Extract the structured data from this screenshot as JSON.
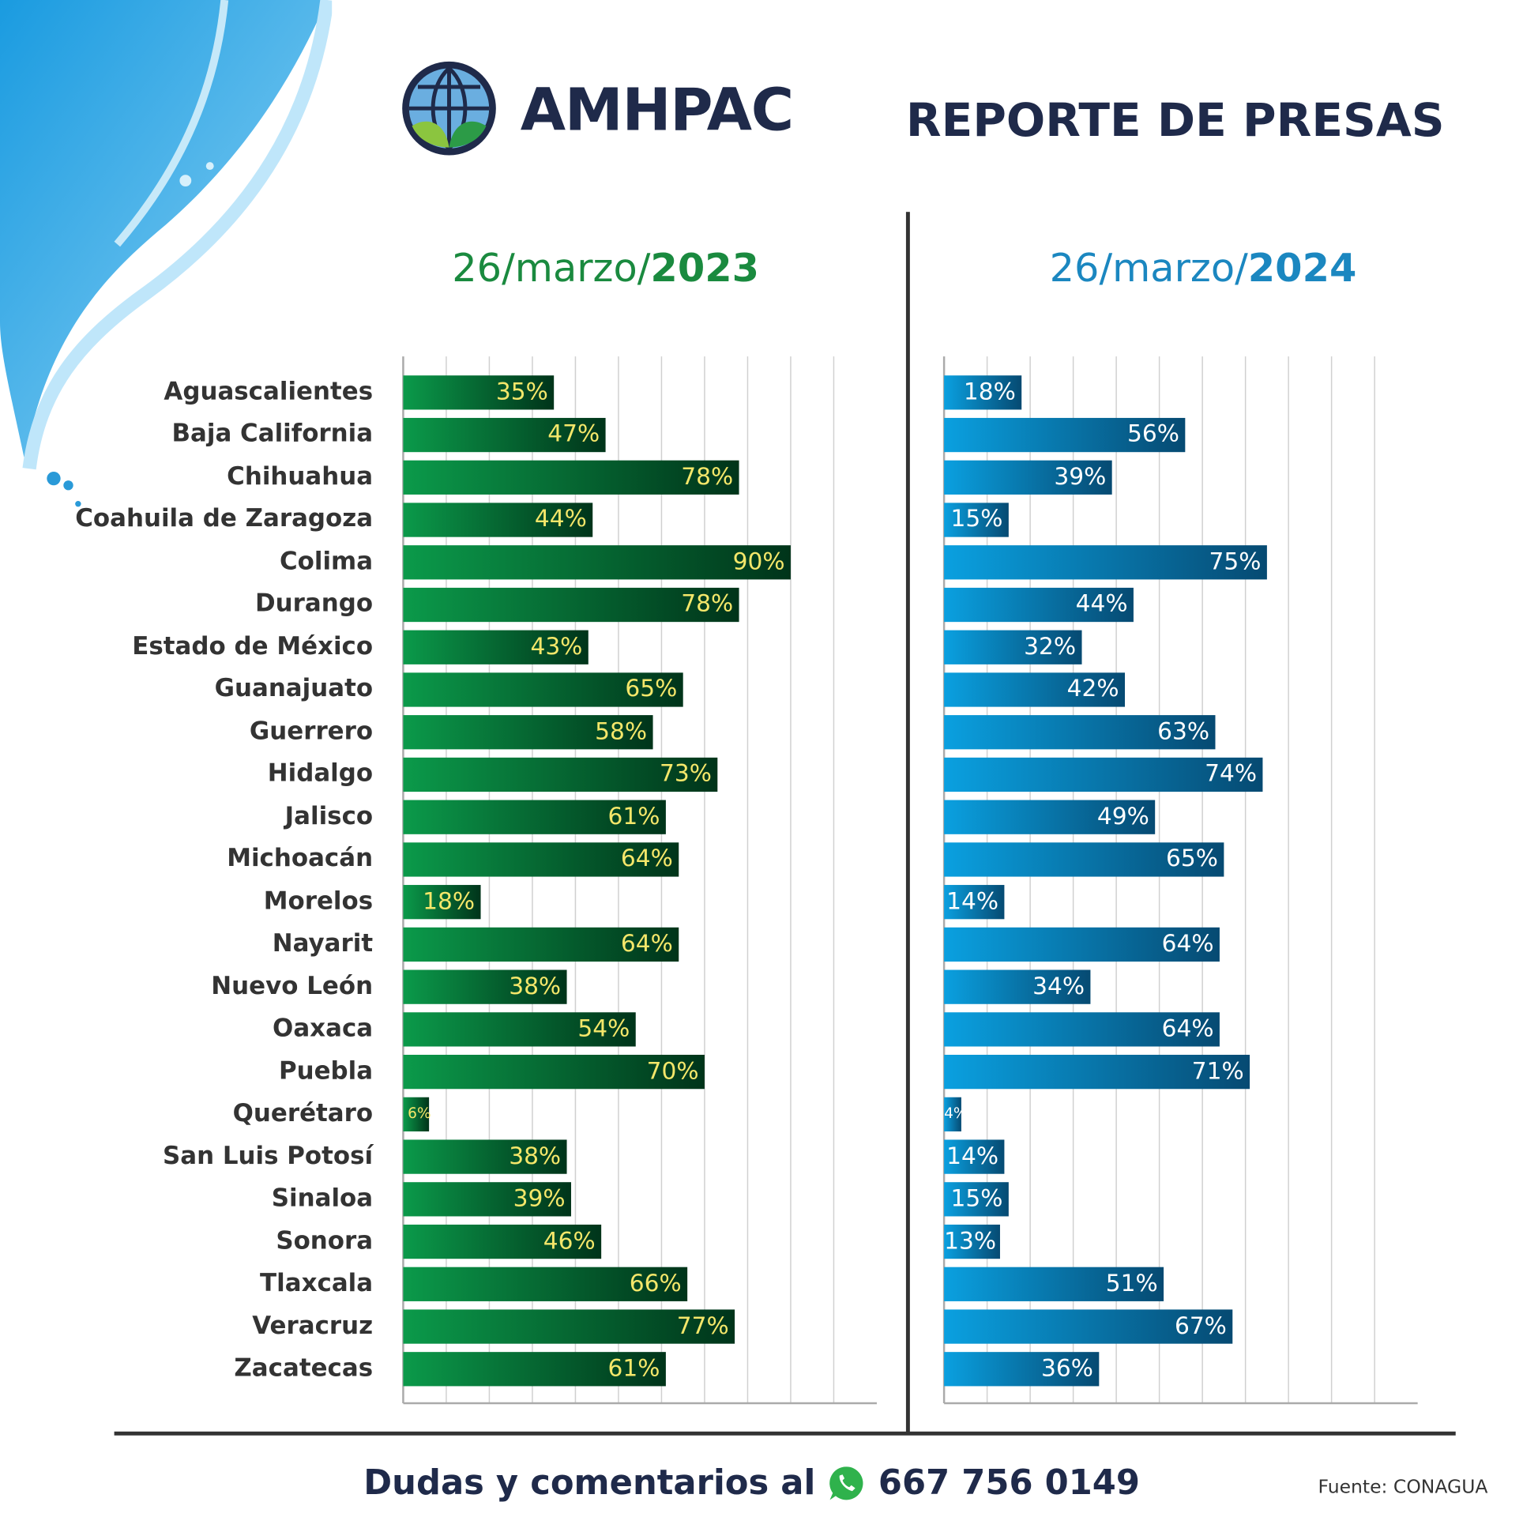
{
  "header": {
    "brand": "AMHPAC",
    "title": "REPORTE DE PRESAS"
  },
  "chart_data": [
    {
      "type": "bar",
      "orientation": "horizontal",
      "title_prefix": "26/marzo/",
      "title_year": "2023",
      "xlim": [
        0,
        110
      ],
      "grid": true,
      "color": "#0a8a3f",
      "label_color": "#f5e76a",
      "categories": [
        "Aguascalientes",
        "Baja California",
        "Chihuahua",
        "Coahuila de Zaragoza",
        "Colima",
        "Durango",
        "Estado de México",
        "Guanajuato",
        "Guerrero",
        "Hidalgo",
        "Jalisco",
        "Michoacán",
        "Morelos",
        "Nayarit",
        "Nuevo León",
        "Oaxaca",
        "Puebla",
        "Querétaro",
        "San Luis Potosí",
        "Sinaloa",
        "Sonora",
        "Tlaxcala",
        "Veracruz",
        "Zacatecas"
      ],
      "values": [
        35,
        47,
        78,
        44,
        90,
        78,
        43,
        65,
        58,
        73,
        61,
        64,
        18,
        64,
        38,
        54,
        70,
        6,
        38,
        39,
        46,
        66,
        77,
        61
      ]
    },
    {
      "type": "bar",
      "orientation": "horizontal",
      "title_prefix": "26/marzo/",
      "title_year": "2024",
      "xlim": [
        0,
        110
      ],
      "grid": true,
      "color": "#0096d6",
      "label_color": "#ffffff",
      "categories": [
        "Aguascalientes",
        "Baja California",
        "Chihuahua",
        "Coahuila de Zaragoza",
        "Colima",
        "Durango",
        "Estado de México",
        "Guanajuato",
        "Guerrero",
        "Hidalgo",
        "Jalisco",
        "Michoacán",
        "Morelos",
        "Nayarit",
        "Nuevo León",
        "Oaxaca",
        "Puebla",
        "Querétaro",
        "San Luis Potosí",
        "Sinaloa",
        "Sonora",
        "Tlaxcala",
        "Veracruz",
        "Zacatecas"
      ],
      "values": [
        18,
        56,
        39,
        15,
        75,
        44,
        32,
        42,
        63,
        74,
        49,
        65,
        14,
        64,
        34,
        64,
        71,
        4,
        14,
        15,
        13,
        51,
        67,
        36
      ]
    }
  ],
  "footer": {
    "text": "Dudas y comentarios al",
    "phone": "667 756 0149",
    "icon": "whatsapp-icon",
    "source": "Fuente: CONAGUA"
  }
}
